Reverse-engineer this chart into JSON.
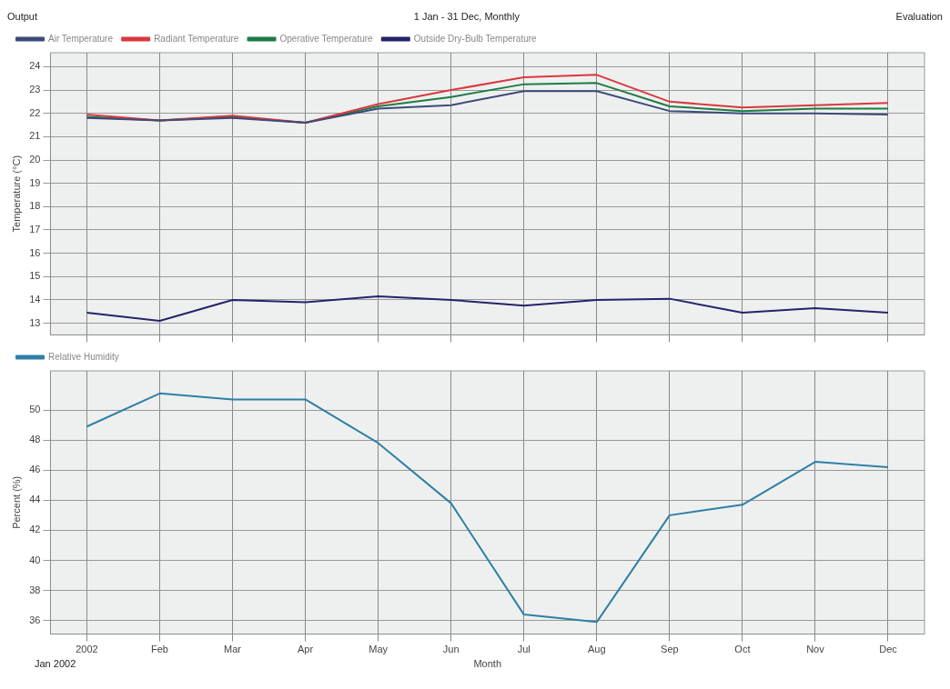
{
  "chart_data": [
    {
      "type": "line",
      "title": "Output",
      "subtitle": "1 Jan - 31 Dec, Monthly",
      "annotations": [
        "Evaluation"
      ],
      "ylabel": "Temperature (°C)",
      "categories": [
        null,
        null,
        null,
        null,
        null,
        null,
        null,
        null,
        null,
        null,
        null,
        null
      ],
      "ylim": [
        12.5,
        24.6
      ],
      "yticks": [
        13,
        14,
        15,
        16,
        17,
        18,
        19,
        20,
        21,
        22,
        23,
        24
      ],
      "grid": true,
      "legend": "top left",
      "tick_labels": "y",
      "series": [
        {
          "name": "Air Temperature",
          "color": "#3d4a7a",
          "values": [
            21.8,
            21.7,
            21.8,
            21.6,
            22.2,
            22.35,
            22.95,
            22.95,
            22.1,
            22.0,
            22.0,
            21.95
          ]
        },
        {
          "name": "Radiant Temperature",
          "color": "#d9393f",
          "values": [
            21.95,
            21.7,
            21.9,
            21.6,
            22.4,
            23.0,
            23.55,
            23.65,
            22.5,
            22.25,
            22.35,
            22.45
          ]
        },
        {
          "name": "Operative Temperature",
          "color": "#1e7b45",
          "values": [
            21.85,
            21.7,
            21.85,
            21.6,
            22.3,
            22.7,
            23.25,
            23.3,
            22.3,
            22.1,
            22.2,
            22.2
          ]
        },
        {
          "name": "Outside Dry-Bulb Temperature",
          "color": "#23246b",
          "values": [
            13.45,
            13.1,
            14.0,
            13.9,
            14.15,
            14.0,
            13.75,
            14.0,
            14.05,
            13.45,
            13.65,
            13.45
          ]
        }
      ]
    },
    {
      "type": "line",
      "ylabel": "Percent (%)",
      "xlabel": "Month",
      "annotations": [
        "Jan 2002"
      ],
      "categories": [
        "2002",
        "Feb",
        "Mar",
        "Apr",
        "May",
        "Jun",
        "Jul",
        "Aug",
        "Sep",
        "Oct",
        "Nov",
        "Dec"
      ],
      "ylim": [
        35.1,
        52.6
      ],
      "yticks": [
        36,
        38,
        40,
        42,
        44,
        46,
        48,
        50
      ],
      "grid": true,
      "legend": "top left",
      "series": [
        {
          "name": "Relative Humidity",
          "color": "#2f7fa6",
          "values": [
            48.9,
            51.1,
            50.7,
            50.7,
            47.8,
            43.8,
            36.4,
            35.9,
            43.0,
            43.7,
            46.55,
            46.2
          ]
        }
      ]
    }
  ]
}
